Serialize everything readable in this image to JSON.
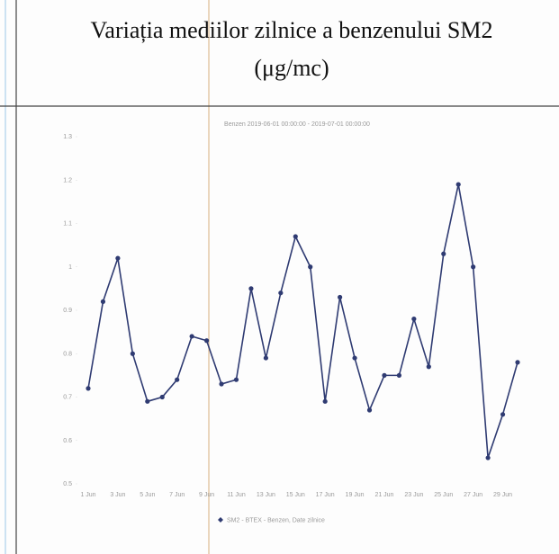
{
  "chart_data": {
    "type": "line",
    "title": [
      "Variația mediilor zilnice a benzenului SM2",
      "(μg/mc)"
    ],
    "subtitle": "Benzen 2019-06-01 00:00:00 - 2019-07-01 00:00:00",
    "categories": [
      "1 Jun",
      null,
      "3 Jun",
      null,
      "5 Jun",
      null,
      "7 Jun",
      null,
      "9 Jun",
      null,
      "11 Jun",
      null,
      "13 Jun",
      null,
      "15 Jun",
      null,
      "17 Jun",
      null,
      "19 Jun",
      null,
      "21 Jun",
      null,
      "23 Jun",
      null,
      "25 Jun",
      null,
      "27 Jun",
      null,
      "29 Jun",
      null
    ],
    "series": [
      {
        "name": "SM2 - BTEX - Benzen, Date zilnice",
        "color": "#2f3b72",
        "values": [
          0.72,
          0.92,
          1.02,
          0.8,
          0.69,
          0.7,
          0.74,
          0.84,
          0.83,
          0.73,
          0.74,
          0.95,
          0.79,
          0.94,
          1.07,
          1.0,
          0.69,
          0.93,
          0.79,
          0.67,
          0.75,
          0.75,
          0.88,
          0.77,
          1.03,
          1.19,
          1.0,
          0.56,
          0.66,
          0.78
        ]
      }
    ],
    "ylim": [
      0.5,
      1.3
    ],
    "yticks": [
      0.5,
      0.6,
      0.7,
      0.8,
      0.9,
      1,
      1.1,
      1.2,
      1.3
    ],
    "legend": "bottom"
  }
}
